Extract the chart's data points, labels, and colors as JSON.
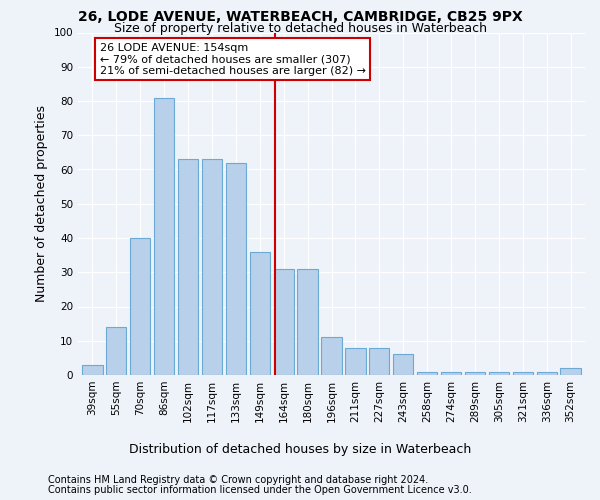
{
  "title": "26, LODE AVENUE, WATERBEACH, CAMBRIDGE, CB25 9PX",
  "subtitle": "Size of property relative to detached houses in Waterbeach",
  "xlabel": "Distribution of detached houses by size in Waterbeach",
  "ylabel": "Number of detached properties",
  "categories": [
    "39sqm",
    "55sqm",
    "70sqm",
    "86sqm",
    "102sqm",
    "117sqm",
    "133sqm",
    "149sqm",
    "164sqm",
    "180sqm",
    "196sqm",
    "211sqm",
    "227sqm",
    "243sqm",
    "258sqm",
    "274sqm",
    "289sqm",
    "305sqm",
    "321sqm",
    "336sqm",
    "352sqm"
  ],
  "values": [
    3,
    14,
    40,
    81,
    63,
    63,
    62,
    36,
    31,
    31,
    11,
    8,
    8,
    6,
    1,
    1,
    1,
    1,
    1,
    1,
    2
  ],
  "bar_color": "#b8d0ea",
  "bar_edge_color": "#6aaad4",
  "vline_x_index": 7.65,
  "vline_color": "#cc0000",
  "annotation_text": "26 LODE AVENUE: 154sqm\n← 79% of detached houses are smaller (307)\n21% of semi-detached houses are larger (82) →",
  "annotation_box_color": "#ffffff",
  "annotation_box_edge_color": "#cc0000",
  "ylim": [
    0,
    100
  ],
  "yticks": [
    0,
    10,
    20,
    30,
    40,
    50,
    60,
    70,
    80,
    90,
    100
  ],
  "footer1": "Contains HM Land Registry data © Crown copyright and database right 2024.",
  "footer2": "Contains public sector information licensed under the Open Government Licence v3.0.",
  "background_color": "#eef2f9",
  "title_fontsize": 10,
  "subtitle_fontsize": 9,
  "axis_label_fontsize": 9,
  "tick_fontsize": 7.5,
  "footer_fontsize": 7,
  "annotation_fontsize": 8
}
